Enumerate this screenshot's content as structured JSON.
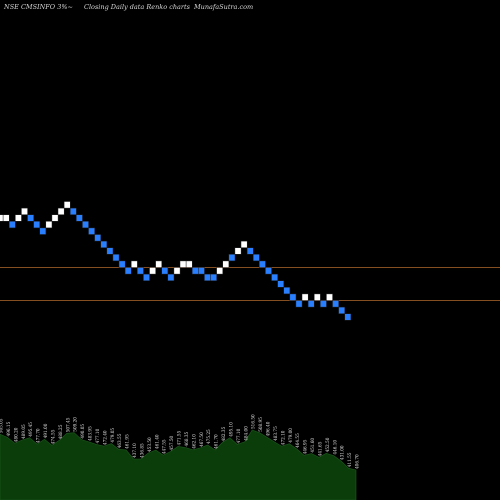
{
  "header": {
    "left": "NSE CMSINFO 3%~",
    "center": "Closing Daily data  Renko  charts",
    "right": "MunafaSutra.com"
  },
  "colors": {
    "background": "#000000",
    "up_brick": "#ffffff",
    "down_brick": "#2a7fff",
    "brick_outline": "#1a1a1a",
    "level_line": "#b36a2e",
    "volume_fill": "#0b3d0b",
    "volume_stroke": "#1e5a1e"
  },
  "chart_data": {
    "type": "renko",
    "bricks": [
      {
        "dir": "up",
        "level": 0
      },
      {
        "dir": "up",
        "level": 0
      },
      {
        "dir": "down",
        "level": -1
      },
      {
        "dir": "up",
        "level": 0
      },
      {
        "dir": "up",
        "level": 1
      },
      {
        "dir": "down",
        "level": 0
      },
      {
        "dir": "down",
        "level": -1
      },
      {
        "dir": "down",
        "level": -2
      },
      {
        "dir": "up",
        "level": -1
      },
      {
        "dir": "up",
        "level": 0
      },
      {
        "dir": "up",
        "level": 1
      },
      {
        "dir": "up",
        "level": 2
      },
      {
        "dir": "down",
        "level": 1
      },
      {
        "dir": "down",
        "level": 0
      },
      {
        "dir": "down",
        "level": -1
      },
      {
        "dir": "down",
        "level": -2
      },
      {
        "dir": "down",
        "level": -3
      },
      {
        "dir": "down",
        "level": -4
      },
      {
        "dir": "down",
        "level": -5
      },
      {
        "dir": "down",
        "level": -6
      },
      {
        "dir": "down",
        "level": -7
      },
      {
        "dir": "down",
        "level": -8
      },
      {
        "dir": "up",
        "level": -7
      },
      {
        "dir": "down",
        "level": -8
      },
      {
        "dir": "down",
        "level": -9
      },
      {
        "dir": "up",
        "level": -8
      },
      {
        "dir": "up",
        "level": -7
      },
      {
        "dir": "down",
        "level": -8
      },
      {
        "dir": "down",
        "level": -9
      },
      {
        "dir": "up",
        "level": -8
      },
      {
        "dir": "up",
        "level": -7
      },
      {
        "dir": "up",
        "level": -7
      },
      {
        "dir": "down",
        "level": -8
      },
      {
        "dir": "down",
        "level": -8
      },
      {
        "dir": "down",
        "level": -9
      },
      {
        "dir": "down",
        "level": -9
      },
      {
        "dir": "up",
        "level": -8
      },
      {
        "dir": "up",
        "level": -7
      },
      {
        "dir": "down",
        "level": -6
      },
      {
        "dir": "up",
        "level": -5
      },
      {
        "dir": "up",
        "level": -4
      },
      {
        "dir": "down",
        "level": -5
      },
      {
        "dir": "down",
        "level": -6
      },
      {
        "dir": "down",
        "level": -7
      },
      {
        "dir": "down",
        "level": -8
      },
      {
        "dir": "down",
        "level": -9
      },
      {
        "dir": "down",
        "level": -10
      },
      {
        "dir": "down",
        "level": -11
      },
      {
        "dir": "down",
        "level": -12
      },
      {
        "dir": "down",
        "level": -13
      },
      {
        "dir": "up",
        "level": -12
      },
      {
        "dir": "down",
        "level": -13
      },
      {
        "dir": "up",
        "level": -12
      },
      {
        "dir": "down",
        "level": -13
      },
      {
        "dir": "up",
        "level": -12
      },
      {
        "dir": "down",
        "level": -13
      },
      {
        "dir": "down",
        "level": -14
      },
      {
        "dir": "down",
        "level": -15
      }
    ],
    "level_lines": [
      -7,
      -12
    ],
    "volume_labels": [
      "505.05",
      "496.15",
      "480.20",
      "489.05",
      "495.45",
      "477.70",
      "491.00",
      "474.55",
      "488.25",
      "507.45",
      "509.20",
      "490.05",
      "483.95",
      "477.10",
      "472.40",
      "479.05",
      "463.55",
      "461.95",
      "437.10",
      "436.85",
      "453.50",
      "461.40",
      "447.55",
      "457.50",
      "471.55",
      "468.35",
      "462.10",
      "467.50",
      "475.25",
      "461.70",
      "482.35",
      "495.10",
      "477.10",
      "484.00",
      "516.50",
      "508.95",
      "496.40",
      "483.75",
      "472.10",
      "479.00",
      "464.55",
      "446.95",
      "451.60",
      "441.65",
      "452.50",
      "446.10",
      "431.00",
      "411.55",
      "406.70"
    ]
  }
}
